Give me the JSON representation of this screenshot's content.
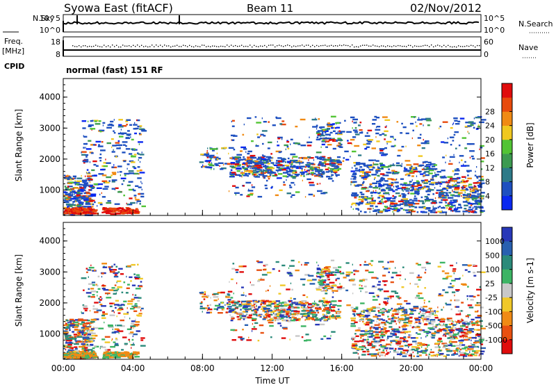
{
  "header": {
    "title": "Syowa East (fitACF)",
    "beam": "Beam 11",
    "date": "02/Nov/2012"
  },
  "noise_panel": {
    "left_label": "N.Sky",
    "right_label": "N.Search",
    "ticks": [
      "10^5",
      "10^0"
    ]
  },
  "freq_panel": {
    "left_label_1": "Freq.",
    "left_label_2": "[MHz]",
    "right_label": "Nave",
    "left_ticks": [
      "18",
      "8"
    ],
    "right_ticks": [
      "60",
      "0"
    ]
  },
  "cpid": {
    "label": "CPID",
    "mode": "normal (fast) 151 RF"
  },
  "chart_data": [
    {
      "type": "heatmap",
      "title": "",
      "ylabel": "Slant Range [km]",
      "xlabel": "Time UT",
      "ylim": [
        180,
        4600
      ],
      "yticks": [
        "1000",
        "2000",
        "3000",
        "4000"
      ],
      "xticks": [
        "00:00",
        "04:00",
        "08:00",
        "12:00",
        "16:00",
        "20:00",
        "00:00"
      ],
      "colorbar": {
        "label": "Power [dB]",
        "ticks": [
          "4",
          "8",
          "12",
          "16",
          "20",
          "24",
          "28"
        ],
        "colors": [
          "#0a28f0",
          "#1e50c0",
          "#2d7a88",
          "#3c9a50",
          "#52c434",
          "#f0c820",
          "#f08a14",
          "#e84a0c",
          "#e00c0c"
        ]
      }
    },
    {
      "type": "heatmap",
      "title": "",
      "ylabel": "Slant Range [km]",
      "xlabel": "Time UT",
      "ylim": [
        180,
        4600
      ],
      "yticks": [
        "1000",
        "2000",
        "3000",
        "4000"
      ],
      "xticks": [
        "00:00",
        "04:00",
        "08:00",
        "12:00",
        "16:00",
        "20:00",
        "00:00"
      ],
      "colorbar": {
        "label": "Velocity [m s-1]",
        "ticks": [
          "1000",
          "500",
          "100",
          "25",
          "-25",
          "-100",
          "-500",
          "-1000"
        ],
        "colors": [
          "#2838b8",
          "#2860b0",
          "#2a8a7a",
          "#3cb464",
          "#c8c8c8",
          "#f0c828",
          "#f08a14",
          "#e85010",
          "#e00c0c"
        ]
      }
    }
  ]
}
